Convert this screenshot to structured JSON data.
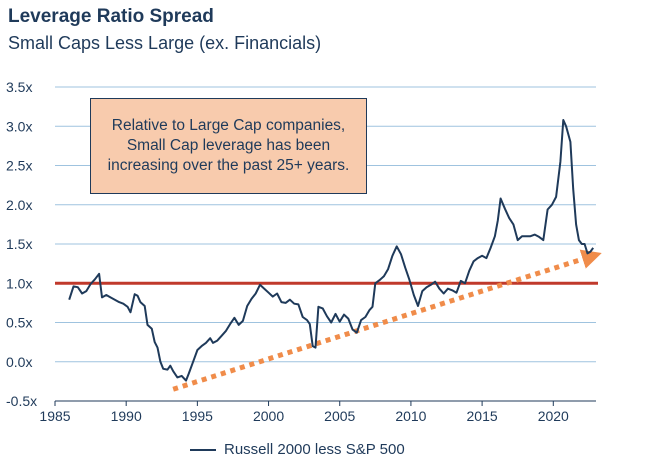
{
  "title": "Leverage Ratio Spread",
  "subtitle": "Small Caps Less Large (ex. Financials)",
  "callout": "Relative to Large Cap companies, Small Cap leverage has been increasing over the past 25+ years.",
  "colors": {
    "series": "#1f3a5a",
    "reference_line": "#c0392b",
    "trend_arrow": "#f08c4a",
    "grid": "#9fc3df",
    "callout_fill": "#f8cbad"
  },
  "chart_data": {
    "type": "line",
    "xlim": [
      1985,
      2023
    ],
    "ylim": [
      -0.5,
      3.5
    ],
    "x_ticks": [
      1985,
      1990,
      1995,
      2000,
      2005,
      2010,
      2015,
      2020
    ],
    "x_tick_labels": [
      "1985",
      "1990",
      "1995",
      "2000",
      "2005",
      "2010",
      "2015",
      "2020"
    ],
    "y_ticks": [
      -0.5,
      0.0,
      0.5,
      1.0,
      1.5,
      2.0,
      2.5,
      3.0,
      3.5
    ],
    "y_tick_labels": [
      "-0.5x",
      "0.0x",
      "0.5x",
      "1.0x",
      "1.5x",
      "2.0x",
      "2.5x",
      "3.0x",
      "3.5x"
    ],
    "grid": true,
    "legend_position": "bottom",
    "reference_line": {
      "y": 1.0
    },
    "trend_arrow": {
      "from": [
        1993.3,
        -0.35
      ],
      "to": [
        2022.8,
        1.35
      ]
    },
    "series": [
      {
        "name": "Russell 2000 less S&P 500",
        "points": [
          [
            1986.0,
            0.79
          ],
          [
            1986.3,
            0.96
          ],
          [
            1986.6,
            0.95
          ],
          [
            1986.9,
            0.87
          ],
          [
            1987.2,
            0.9
          ],
          [
            1987.5,
            0.99
          ],
          [
            1987.8,
            1.05
          ],
          [
            1988.1,
            1.12
          ],
          [
            1988.3,
            0.82
          ],
          [
            1988.6,
            0.85
          ],
          [
            1988.9,
            0.82
          ],
          [
            1989.2,
            0.79
          ],
          [
            1989.5,
            0.76
          ],
          [
            1989.8,
            0.74
          ],
          [
            1990.1,
            0.7
          ],
          [
            1990.3,
            0.63
          ],
          [
            1990.6,
            0.86
          ],
          [
            1990.8,
            0.84
          ],
          [
            1991.0,
            0.76
          ],
          [
            1991.3,
            0.71
          ],
          [
            1991.5,
            0.47
          ],
          [
            1991.8,
            0.42
          ],
          [
            1992.0,
            0.25
          ],
          [
            1992.2,
            0.18
          ],
          [
            1992.4,
            0.0
          ],
          [
            1992.6,
            -0.09
          ],
          [
            1992.9,
            -0.1
          ],
          [
            1993.1,
            -0.05
          ],
          [
            1993.3,
            -0.12
          ],
          [
            1993.6,
            -0.2
          ],
          [
            1993.9,
            -0.18
          ],
          [
            1994.2,
            -0.24
          ],
          [
            1994.4,
            -0.15
          ],
          [
            1994.7,
            0.0
          ],
          [
            1995.0,
            0.15
          ],
          [
            1995.3,
            0.2
          ],
          [
            1995.6,
            0.24
          ],
          [
            1995.9,
            0.3
          ],
          [
            1996.1,
            0.24
          ],
          [
            1996.4,
            0.27
          ],
          [
            1996.7,
            0.33
          ],
          [
            1997.0,
            0.39
          ],
          [
            1997.3,
            0.48
          ],
          [
            1997.6,
            0.56
          ],
          [
            1997.9,
            0.47
          ],
          [
            1998.2,
            0.52
          ],
          [
            1998.5,
            0.71
          ],
          [
            1998.8,
            0.8
          ],
          [
            1999.1,
            0.87
          ],
          [
            1999.4,
            0.98
          ],
          [
            1999.7,
            0.93
          ],
          [
            2000.0,
            0.88
          ],
          [
            2000.3,
            0.83
          ],
          [
            2000.6,
            0.87
          ],
          [
            2000.9,
            0.76
          ],
          [
            2001.2,
            0.75
          ],
          [
            2001.5,
            0.79
          ],
          [
            2001.8,
            0.74
          ],
          [
            2002.1,
            0.73
          ],
          [
            2002.4,
            0.57
          ],
          [
            2002.7,
            0.53
          ],
          [
            2002.9,
            0.48
          ],
          [
            2003.1,
            0.2
          ],
          [
            2003.3,
            0.18
          ],
          [
            2003.5,
            0.7
          ],
          [
            2003.8,
            0.68
          ],
          [
            2004.1,
            0.58
          ],
          [
            2004.4,
            0.5
          ],
          [
            2004.7,
            0.61
          ],
          [
            2005.0,
            0.51
          ],
          [
            2005.3,
            0.6
          ],
          [
            2005.6,
            0.55
          ],
          [
            2005.9,
            0.41
          ],
          [
            2006.2,
            0.37
          ],
          [
            2006.5,
            0.53
          ],
          [
            2006.8,
            0.57
          ],
          [
            2007.1,
            0.66
          ],
          [
            2007.3,
            0.7
          ],
          [
            2007.5,
            1.0
          ],
          [
            2007.8,
            1.04
          ],
          [
            2008.1,
            1.09
          ],
          [
            2008.4,
            1.18
          ],
          [
            2008.7,
            1.35
          ],
          [
            2009.0,
            1.47
          ],
          [
            2009.3,
            1.37
          ],
          [
            2009.6,
            1.2
          ],
          [
            2009.9,
            1.04
          ],
          [
            2010.2,
            0.85
          ],
          [
            2010.5,
            0.71
          ],
          [
            2010.8,
            0.9
          ],
          [
            2011.1,
            0.95
          ],
          [
            2011.4,
            0.98
          ],
          [
            2011.7,
            1.02
          ],
          [
            2012.0,
            0.93
          ],
          [
            2012.3,
            0.87
          ],
          [
            2012.6,
            0.93
          ],
          [
            2012.9,
            0.91
          ],
          [
            2013.2,
            0.88
          ],
          [
            2013.5,
            1.03
          ],
          [
            2013.8,
            1.0
          ],
          [
            2014.1,
            1.16
          ],
          [
            2014.4,
            1.28
          ],
          [
            2014.7,
            1.32
          ],
          [
            2015.0,
            1.35
          ],
          [
            2015.3,
            1.32
          ],
          [
            2015.6,
            1.45
          ],
          [
            2015.9,
            1.6
          ],
          [
            2016.1,
            1.8
          ],
          [
            2016.3,
            2.08
          ],
          [
            2016.6,
            1.95
          ],
          [
            2016.9,
            1.83
          ],
          [
            2017.2,
            1.75
          ],
          [
            2017.5,
            1.55
          ],
          [
            2017.8,
            1.6
          ],
          [
            2018.1,
            1.6
          ],
          [
            2018.4,
            1.6
          ],
          [
            2018.7,
            1.62
          ],
          [
            2019.0,
            1.59
          ],
          [
            2019.3,
            1.55
          ],
          [
            2019.6,
            1.94
          ],
          [
            2019.9,
            2.0
          ],
          [
            2020.2,
            2.1
          ],
          [
            2020.5,
            2.55
          ],
          [
            2020.7,
            3.08
          ],
          [
            2020.9,
            3.0
          ],
          [
            2021.2,
            2.8
          ],
          [
            2021.4,
            2.2
          ],
          [
            2021.6,
            1.75
          ],
          [
            2021.8,
            1.55
          ],
          [
            2022.0,
            1.5
          ],
          [
            2022.2,
            1.5
          ],
          [
            2022.4,
            1.38
          ],
          [
            2022.6,
            1.4
          ],
          [
            2022.8,
            1.45
          ]
        ]
      }
    ]
  }
}
